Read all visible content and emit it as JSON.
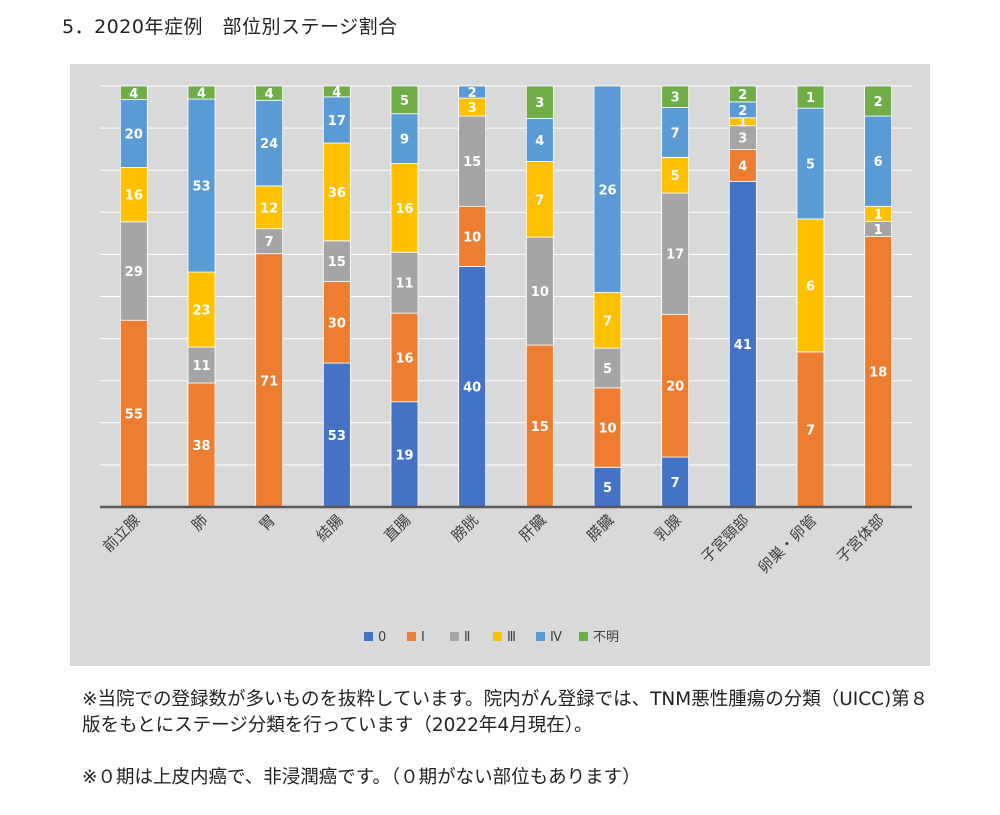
{
  "page": {
    "title": "5．2020年症例　部位別ステージ割合",
    "note1": "※当院での登録数が多いものを抜粋しています。院内がん登録では、TNM悪性腫瘍の分類（UICC)第８版をもとにステージ分類を行っています（2022年4月現在）。",
    "note2": "※０期は上皮内癌で、非浸潤癌です。（０期がない部位もあります）"
  },
  "colors": {
    "panel_bg": "#d9d9d9",
    "gridline": "#ffffff",
    "axis": "#595959",
    "data_label": "#ffffff",
    "tick_label": "#404040"
  },
  "chart_data": {
    "type": "bar",
    "stacked": "percent",
    "grid": true,
    "legend_position": "bottom",
    "categories": [
      "前立腺",
      "肺",
      "胃",
      "結腸",
      "直腸",
      "膀胱",
      "肝臓",
      "膵臓",
      "乳腺",
      "子宮頸部",
      "卵巣・卵管",
      "子宮体部"
    ],
    "series": [
      {
        "name": "0",
        "color": "#4472c4",
        "values": [
          null,
          null,
          null,
          53,
          19,
          40,
          null,
          5,
          7,
          41,
          null,
          null
        ]
      },
      {
        "name": "Ⅰ",
        "color": "#ed7d31",
        "values": [
          55,
          38,
          71,
          30,
          16,
          10,
          15,
          10,
          20,
          4,
          7,
          18
        ]
      },
      {
        "name": "Ⅱ",
        "color": "#a5a5a5",
        "values": [
          29,
          11,
          7,
          15,
          11,
          15,
          10,
          5,
          17,
          3,
          null,
          1
        ]
      },
      {
        "name": "Ⅲ",
        "color": "#ffc000",
        "values": [
          16,
          23,
          12,
          36,
          16,
          3,
          7,
          7,
          5,
          1,
          6,
          1
        ]
      },
      {
        "name": "Ⅳ",
        "color": "#5b9bd5",
        "values": [
          20,
          53,
          24,
          17,
          9,
          2,
          4,
          26,
          7,
          2,
          5,
          6
        ]
      },
      {
        "name": "不明",
        "color": "#70ad47",
        "values": [
          4,
          4,
          4,
          4,
          5,
          null,
          3,
          null,
          3,
          2,
          1,
          2
        ]
      }
    ]
  }
}
